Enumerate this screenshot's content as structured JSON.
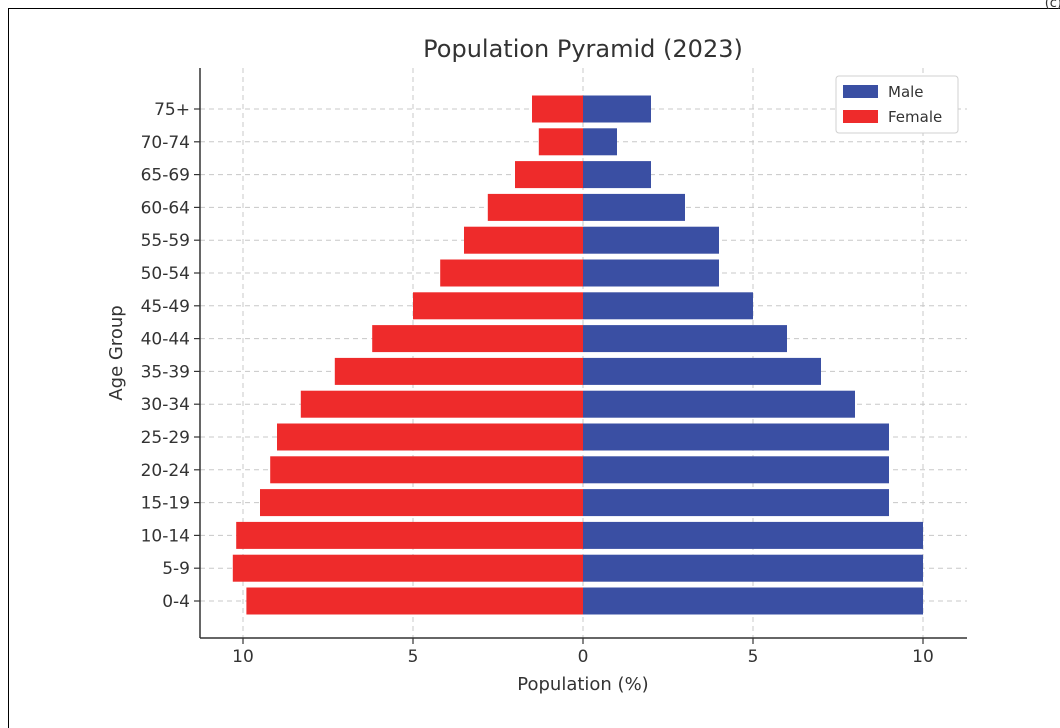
{
  "corner_text": "(c)",
  "chart_data": {
    "type": "bar",
    "orientation": "horizontal",
    "title": "Population Pyramid (2023)",
    "xlabel": "Population (%)",
    "ylabel": "Age Group",
    "categories": [
      "0-4",
      "5-9",
      "10-14",
      "15-19",
      "20-24",
      "25-29",
      "30-34",
      "35-39",
      "40-44",
      "45-49",
      "50-54",
      "55-59",
      "60-64",
      "65-69",
      "70-74",
      "75+"
    ],
    "series": [
      {
        "name": "Male",
        "color": "#3a4fa3",
        "values": [
          10,
          10,
          10,
          9,
          9,
          9,
          8,
          7,
          6,
          5,
          4,
          4,
          3,
          2,
          1,
          2
        ]
      },
      {
        "name": "Female",
        "color": "#ee2b2b",
        "values": [
          -9.9,
          -10.3,
          -10.2,
          -9.5,
          -9.2,
          -9.0,
          -8.3,
          -7.3,
          -6.2,
          -5.0,
          -4.2,
          -3.5,
          -2.8,
          -2.0,
          -1.3,
          -1.5
        ]
      }
    ],
    "xlim": [
      -11.3,
      11.3
    ],
    "xticks": [
      -10,
      -5,
      0,
      5,
      10
    ],
    "xtick_labels": [
      "10",
      "5",
      "0",
      "5",
      "10"
    ],
    "grid": true,
    "legend_position": "top-right"
  }
}
